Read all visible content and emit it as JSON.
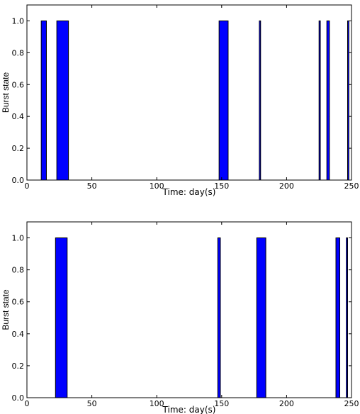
{
  "chart_data": [
    {
      "type": "bar",
      "xlabel": "Time: day(s)",
      "ylabel": "Burst state",
      "xlim": [
        0,
        250
      ],
      "ylim": [
        0,
        1.1
      ],
      "xticks": [
        0,
        50,
        100,
        150,
        200,
        250
      ],
      "yticks": [
        0.0,
        0.2,
        0.4,
        0.6,
        0.8,
        1.0
      ],
      "xtick_labels": [
        "0",
        "50",
        "100",
        "150",
        "200",
        "250"
      ],
      "ytick_labels": [
        "0.0",
        "0.2",
        "0.4",
        "0.6",
        "0.8",
        "1.0"
      ],
      "grid": false,
      "color": "#0000ff",
      "bursts": [
        {
          "start": 11,
          "end": 15,
          "value": 1.0
        },
        {
          "start": 23,
          "end": 32,
          "value": 1.0
        },
        {
          "start": 148,
          "end": 155,
          "value": 1.0
        },
        {
          "start": 179,
          "end": 180,
          "value": 1.0
        },
        {
          "start": 225,
          "end": 226,
          "value": 1.0
        },
        {
          "start": 231,
          "end": 233,
          "value": 1.0
        },
        {
          "start": 247,
          "end": 248,
          "value": 1.0
        }
      ]
    },
    {
      "type": "bar",
      "xlabel": "Time: day(s)",
      "ylabel": "Burst state",
      "xlim": [
        0,
        250
      ],
      "ylim": [
        0,
        1.1
      ],
      "xticks": [
        0,
        50,
        100,
        150,
        200,
        250
      ],
      "yticks": [
        0.0,
        0.2,
        0.4,
        0.6,
        0.8,
        1.0
      ],
      "xtick_labels": [
        "0",
        "50",
        "100",
        "150",
        "200",
        "250"
      ],
      "ytick_labels": [
        "0.0",
        "0.2",
        "0.4",
        "0.6",
        "0.8",
        "1.0"
      ],
      "grid": false,
      "color": "#0000ff",
      "bursts": [
        {
          "start": 22,
          "end": 31,
          "value": 1.0
        },
        {
          "start": 147,
          "end": 149,
          "value": 1.0
        },
        {
          "start": 177,
          "end": 184,
          "value": 1.0
        },
        {
          "start": 238,
          "end": 241,
          "value": 1.0
        },
        {
          "start": 246,
          "end": 247,
          "value": 1.0
        }
      ]
    }
  ]
}
